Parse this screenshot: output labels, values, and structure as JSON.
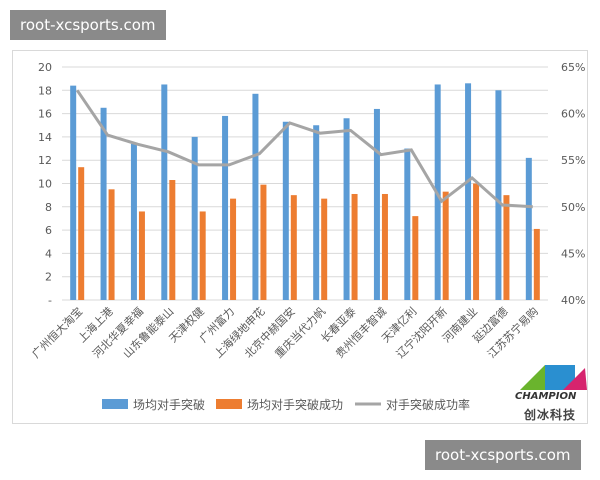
{
  "watermark": {
    "top": "root-xcsports.com",
    "bottom": "root-xcsports.com"
  },
  "logo": {
    "en": "CHAMPION",
    "cn": "创冰科技"
  },
  "chart_data": {
    "type": "bar+line",
    "categories": [
      "广州恒大淘宝",
      "上海上港",
      "河北华夏幸福",
      "山东鲁能泰山",
      "天津权健",
      "广州富力",
      "上海绿地申花",
      "北京中赫国安",
      "重庆当代力帆",
      "长春亚泰",
      "贵州恒丰智诚",
      "天津亿利",
      "辽宁沈阳开新",
      "河南建业",
      "延边富德",
      "江苏苏宁易购"
    ],
    "series": [
      {
        "name": "场均对手突破",
        "type": "bar",
        "axis": "left",
        "color": "#5b9bd5",
        "values": [
          18.4,
          16.5,
          13.4,
          18.5,
          14.0,
          15.8,
          17.7,
          15.3,
          15.0,
          15.6,
          16.4,
          13.0,
          18.5,
          18.6,
          18.0,
          12.2
        ]
      },
      {
        "name": "场均对手突破成功",
        "type": "bar",
        "axis": "left",
        "color": "#ed7d31",
        "values": [
          11.4,
          9.5,
          7.6,
          10.3,
          7.6,
          8.7,
          9.9,
          9.0,
          8.7,
          9.1,
          9.1,
          7.2,
          9.3,
          10.0,
          9.0,
          6.1
        ]
      },
      {
        "name": "对手突破成功率",
        "type": "line",
        "axis": "right",
        "color": "#a5a5a5",
        "values": [
          62.5,
          57.7,
          56.7,
          55.9,
          54.5,
          54.5,
          55.7,
          59.0,
          57.9,
          58.2,
          55.6,
          56.1,
          50.6,
          53.1,
          50.2,
          50.0
        ]
      }
    ],
    "left_axis": {
      "ylim": [
        0,
        20
      ],
      "ticks": [
        "-",
        "2",
        "4",
        "6",
        "8",
        "10",
        "12",
        "14",
        "16",
        "18",
        "20"
      ]
    },
    "right_axis": {
      "ylim": [
        40,
        65
      ],
      "ticks": [
        "40%",
        "45%",
        "50%",
        "55%",
        "60%",
        "65%"
      ]
    },
    "grid": true,
    "legend": "bottom"
  }
}
